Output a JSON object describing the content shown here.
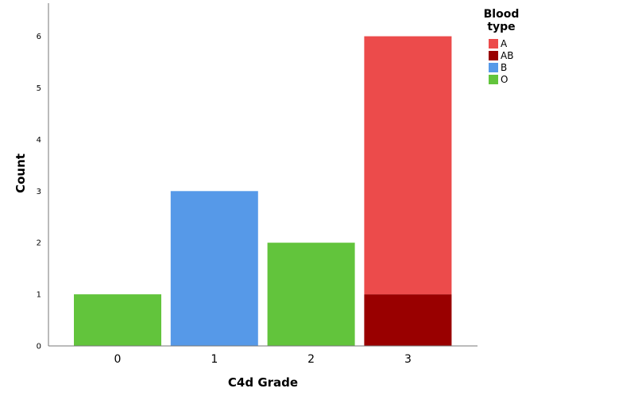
{
  "chart_data": {
    "type": "bar",
    "stacked": true,
    "categories": [
      "0",
      "1",
      "2",
      "3"
    ],
    "series": [
      {
        "name": "A",
        "color": "#ec4b4b",
        "values": [
          0,
          0,
          0,
          5
        ]
      },
      {
        "name": "AB",
        "color": "#990000",
        "values": [
          0,
          0,
          0,
          1
        ]
      },
      {
        "name": "B",
        "color": "#5699e8",
        "values": [
          0,
          3,
          0,
          0
        ]
      },
      {
        "name": "O",
        "color": "#62c43c",
        "values": [
          1,
          0,
          2,
          0
        ]
      }
    ],
    "stack_order": [
      "AB",
      "O",
      "B",
      "A"
    ],
    "xlabel": "C4d Grade",
    "ylabel": "Count",
    "ylim": [
      0,
      6.6
    ],
    "yticks": [
      "0",
      "1",
      "2",
      "3",
      "4",
      "5",
      "6"
    ],
    "grid": false,
    "legend": {
      "title_lines": [
        "Blood",
        "type"
      ],
      "placement": "top-right"
    }
  }
}
